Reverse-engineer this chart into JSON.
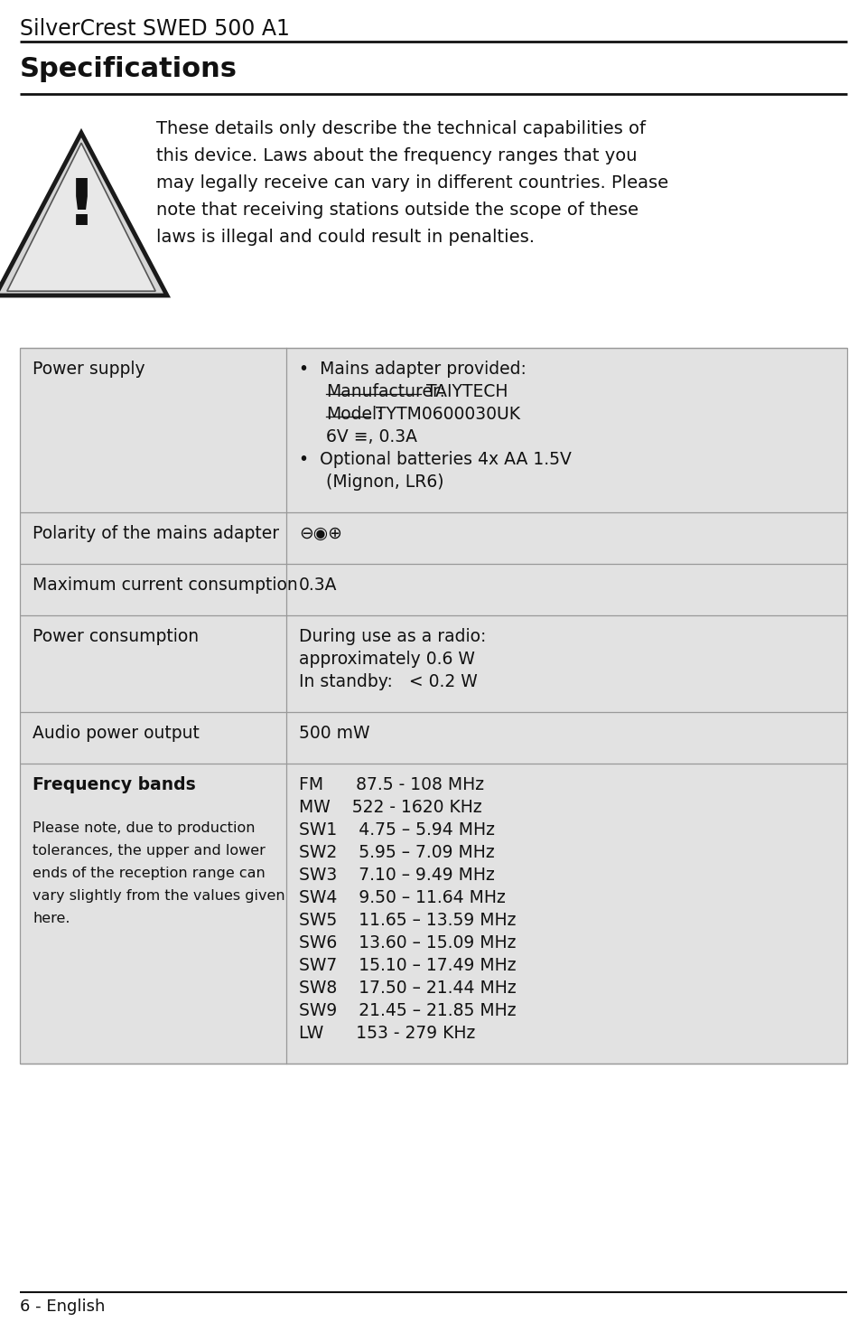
{
  "page_title": "SilverCrest SWED 500 A1",
  "section_title": "Specifications",
  "footer_text": "6 - English",
  "bg_color": "#ffffff",
  "table_bg": "#e2e2e2",
  "border_color": "#999999",
  "warn_lines": [
    "These details only describe the technical capabilities of",
    "this device. Laws about the frequency ranges that you",
    "may legally receive can vary in different countries. Please",
    "note that receiving stations outside the scope of these",
    "laws is illegal and could result in penalties."
  ],
  "rows": [
    {
      "left": "Power supply",
      "right_lines": [
        {
          "text": "•  Mains adapter provided:",
          "indent": 0
        },
        {
          "text": "Manufacturer: TAIYTECH",
          "indent": 1,
          "underline_word": "Manufacturer:"
        },
        {
          "text": "Model: TYTM0600030UK",
          "indent": 1,
          "underline_word": "Model:"
        },
        {
          "text": "6V ≡, 0.3A",
          "indent": 1
        },
        {
          "text": "•  Optional batteries 4x AA 1.5V",
          "indent": 0
        },
        {
          "text": "(Mignon, LR6)",
          "indent": 1
        }
      ]
    },
    {
      "left": "Polarity of the mains adapter",
      "right_lines": [
        {
          "text": "⊖◉⊕",
          "indent": 0
        }
      ]
    },
    {
      "left": "Maximum current consumption",
      "right_lines": [
        {
          "text": "0.3A",
          "indent": 0
        }
      ]
    },
    {
      "left": "Power consumption",
      "right_lines": [
        {
          "text": "During use as a radio:",
          "indent": 0
        },
        {
          "text": "approximately 0.6 W",
          "indent": 0
        },
        {
          "text": "In standby:   < 0.2 W",
          "indent": 0
        }
      ]
    },
    {
      "left": "Audio power output",
      "right_lines": [
        {
          "text": "500 mW",
          "indent": 0
        }
      ]
    },
    {
      "left_lines": [
        "Frequency bands",
        "",
        "Please note, due to production",
        "tolerances, the upper and lower",
        "ends of the reception range can",
        "vary slightly from the values given",
        "here."
      ],
      "right_lines": [
        {
          "text": "FM      87.5 - 108 MHz",
          "indent": 0
        },
        {
          "text": "MW    522 - 1620 KHz",
          "indent": 0
        },
        {
          "text": "SW1    4.75 – 5.94 MHz",
          "indent": 0
        },
        {
          "text": "SW2    5.95 – 7.09 MHz",
          "indent": 0
        },
        {
          "text": "SW3    7.10 – 9.49 MHz",
          "indent": 0
        },
        {
          "text": "SW4    9.50 – 11.64 MHz",
          "indent": 0
        },
        {
          "text": "SW5    11.65 – 13.59 MHz",
          "indent": 0
        },
        {
          "text": "SW6    13.60 – 15.09 MHz",
          "indent": 0
        },
        {
          "text": "SW7    15.10 – 17.49 MHz",
          "indent": 0
        },
        {
          "text": "SW8    17.50 – 21.44 MHz",
          "indent": 0
        },
        {
          "text": "SW9    21.45 – 21.85 MHz",
          "indent": 0
        },
        {
          "text": "LW      153 - 279 KHz",
          "indent": 0
        }
      ],
      "multi_left": true
    }
  ]
}
